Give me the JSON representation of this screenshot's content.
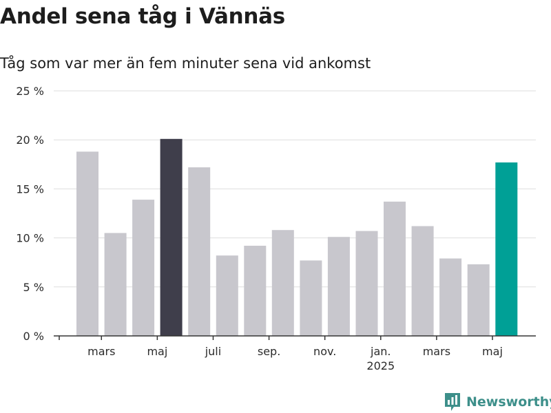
{
  "chart_data": {
    "type": "bar",
    "title": "Andel sena tåg i Vännäs",
    "subtitle": "Tåg som var mer än fem minuter sena vid ankomst",
    "unit": "%",
    "ylim": [
      0,
      25
    ],
    "yticks": [
      "0 %",
      "5 %",
      "10 %",
      "15 %",
      "20 %",
      "25 %"
    ],
    "xticks": [
      {
        "index": 1,
        "label": "mars",
        "sub": ""
      },
      {
        "index": 3,
        "label": "maj",
        "sub": ""
      },
      {
        "index": 5,
        "label": "juli",
        "sub": ""
      },
      {
        "index": 7,
        "label": "sep.",
        "sub": ""
      },
      {
        "index": 9,
        "label": "nov.",
        "sub": ""
      },
      {
        "index": 11,
        "label": "jan.",
        "sub": "2025"
      },
      {
        "index": 13,
        "label": "mars",
        "sub": ""
      },
      {
        "index": 15,
        "label": "maj",
        "sub": ""
      }
    ],
    "values": [
      18.8,
      10.5,
      13.9,
      20.1,
      17.2,
      8.2,
      9.2,
      10.8,
      7.7,
      10.1,
      10.7,
      13.7,
      11.2,
      7.9,
      7.3,
      17.7
    ],
    "colors": {
      "default": "#c8c7cd",
      "highlight_previous_year": "#3f3e4b",
      "highlight_current": "#00a096",
      "grid": "#dedede",
      "axis": "#333333"
    },
    "highlight_indices": {
      "3": "highlight_previous_year",
      "15": "highlight_current"
    },
    "grid": true,
    "legend": "none"
  },
  "brand": {
    "name": "Newsworthy",
    "icon": "newsworthy-chart-icon"
  }
}
